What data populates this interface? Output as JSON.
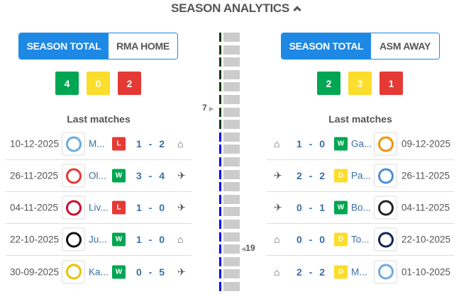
{
  "title": "SEASON ANALYTICS",
  "colors": {
    "win": "#00a651",
    "draw": "#fbdd2b",
    "loss": "#e53935",
    "accent": "#1e88e5",
    "streak_dark": "#0a3a0a",
    "streak_blue": "#0000ff"
  },
  "left": {
    "tab_active": "SEASON TOTAL",
    "tab_other": "RMA HOME",
    "stats": {
      "w": "4",
      "d": "0",
      "l": "2"
    },
    "last_matches_label": "Last matches",
    "matches": [
      {
        "date": "10-12-2025",
        "name": "M...",
        "result": "L",
        "home": "1",
        "away": "2",
        "venue": "home",
        "logo": "#6cabdd"
      },
      {
        "date": "26-11-2025",
        "name": "Ol...",
        "result": "W",
        "home": "3",
        "away": "4",
        "venue": "away",
        "logo": "#e53935"
      },
      {
        "date": "04-11-2025",
        "name": "Liv...",
        "result": "L",
        "home": "1",
        "away": "0",
        "venue": "away",
        "logo": "#c8102e"
      },
      {
        "date": "22-10-2025",
        "name": "Ju...",
        "result": "W",
        "home": "1",
        "away": "0",
        "venue": "home",
        "logo": "#111111"
      },
      {
        "date": "30-09-2025",
        "name": "Ka...",
        "result": "W",
        "home": "0",
        "away": "5",
        "venue": "away",
        "logo": "#e6c200"
      }
    ]
  },
  "right": {
    "tab_active": "SEASON TOTAL",
    "tab_other": "ASM AWAY",
    "stats": {
      "w": "2",
      "d": "3",
      "l": "1"
    },
    "last_matches_label": "Last matches",
    "matches": [
      {
        "date": "09-12-2025",
        "name": "Ga...",
        "result": "W",
        "home": "1",
        "away": "0",
        "venue": "home",
        "logo": "#f39200"
      },
      {
        "date": "26-11-2025",
        "name": "Pa...",
        "result": "D",
        "home": "2",
        "away": "2",
        "venue": "away",
        "logo": "#4a90d9"
      },
      {
        "date": "04-11-2025",
        "name": "Bo...",
        "result": "W",
        "home": "0",
        "away": "1",
        "venue": "away",
        "logo": "#222222"
      },
      {
        "date": "22-10-2025",
        "name": "To...",
        "result": "D",
        "home": "0",
        "away": "0",
        "venue": "home",
        "logo": "#132257"
      },
      {
        "date": "01-10-2025",
        "name": "M...",
        "result": "D",
        "home": "2",
        "away": "2",
        "venue": "home",
        "logo": "#6cabdd"
      }
    ]
  },
  "streak": {
    "total": 21,
    "dark_count": 8,
    "left_marker": "7",
    "right_marker": "19"
  }
}
